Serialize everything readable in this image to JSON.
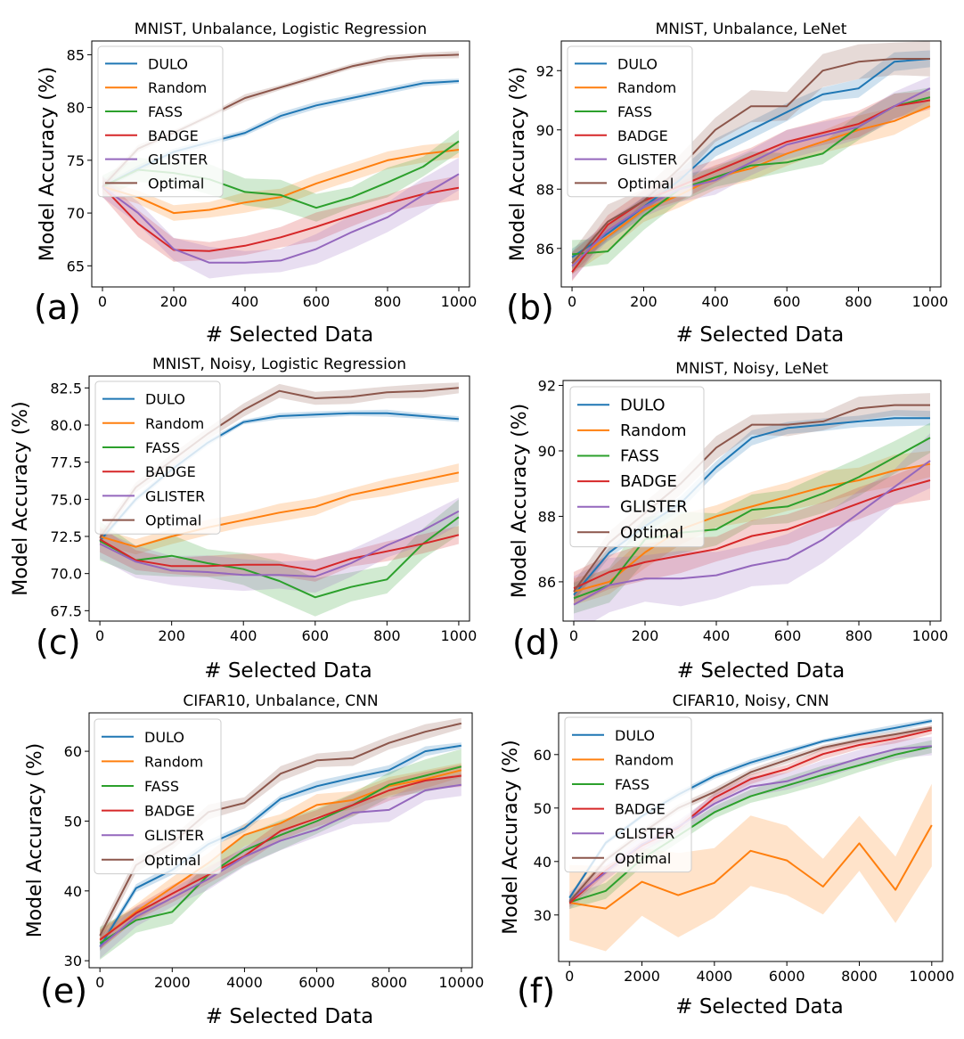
{
  "colors": {
    "DULO": "#1f77b4",
    "Random": "#ff7f0e",
    "FASS": "#2ca02c",
    "BADGE": "#d62728",
    "GLISTER": "#9467bd",
    "Optimal": "#8c564b"
  },
  "chart_data": [
    {
      "id": "a",
      "type": "line",
      "letter": "(a)",
      "title": "MNIST, Unbalance, Logistic Regression",
      "xlabel": "# Selected Data",
      "ylabel": "Model Accuracy (%)",
      "xlim": [
        -30,
        1030
      ],
      "ylim": [
        63,
        86.3
      ],
      "xticks": [
        0,
        200,
        400,
        600,
        800,
        1000
      ],
      "xtick_labels": [
        "0",
        "200",
        "400",
        "600",
        "800",
        "1000"
      ],
      "yticks": [
        65,
        70,
        75,
        80,
        85
      ],
      "ytick_labels": [
        "65",
        "70",
        "75",
        "80",
        "85"
      ],
      "legend": [
        "DULO",
        "Random",
        "FASS",
        "BADGE",
        "GLISTER",
        "Optimal"
      ],
      "x": [
        0,
        100,
        200,
        300,
        400,
        500,
        600,
        700,
        800,
        900,
        1000
      ],
      "series": [
        {
          "name": "DULO",
          "values": [
            72.5,
            74.2,
            75.8,
            76.7,
            77.6,
            79.2,
            80.2,
            80.9,
            81.6,
            82.3,
            82.5
          ],
          "band": 0.3
        },
        {
          "name": "Random",
          "values": [
            72.5,
            71.5,
            70.0,
            70.3,
            71.0,
            71.5,
            72.8,
            73.9,
            75.0,
            75.6,
            76.0
          ],
          "band": 0.8
        },
        {
          "name": "FASS",
          "values": [
            72.5,
            74.1,
            73.8,
            73.2,
            72.0,
            71.7,
            70.5,
            71.5,
            72.9,
            74.4,
            76.8
          ],
          "band": 1.2
        },
        {
          "name": "BADGE",
          "values": [
            72.5,
            69.0,
            66.5,
            66.4,
            66.9,
            67.7,
            68.7,
            69.8,
            70.9,
            71.8,
            72.4
          ],
          "band": 1.1
        },
        {
          "name": "GLISTER",
          "values": [
            72.5,
            70.0,
            66.6,
            65.3,
            65.3,
            65.5,
            66.6,
            68.2,
            69.6,
            71.7,
            73.7
          ],
          "band": 1.3
        },
        {
          "name": "Optimal",
          "values": [
            72.5,
            76.1,
            77.6,
            79.2,
            80.9,
            81.9,
            82.9,
            83.9,
            84.6,
            84.9,
            85.0
          ],
          "band": 0.3
        }
      ]
    },
    {
      "id": "b",
      "type": "line",
      "letter": "(b)",
      "title": "MNIST, Unbalance, LeNet",
      "xlabel": "# Selected Data",
      "ylabel": "Model Accuracy (%)",
      "xlim": [
        -30,
        1030
      ],
      "ylim": [
        84.7,
        93.0
      ],
      "xticks": [
        0,
        200,
        400,
        600,
        800,
        1000
      ],
      "xtick_labels": [
        "0",
        "200",
        "400",
        "600",
        "800",
        "1000"
      ],
      "yticks": [
        86,
        88,
        90,
        92
      ],
      "ytick_labels": [
        "86",
        "88",
        "90",
        "92"
      ],
      "legend": [
        "DULO",
        "Random",
        "FASS",
        "BADGE",
        "GLISTER",
        "Optimal"
      ],
      "x": [
        0,
        100,
        200,
        300,
        400,
        500,
        600,
        700,
        800,
        900,
        1000
      ],
      "series": [
        {
          "name": "DULO",
          "values": [
            85.7,
            86.5,
            87.4,
            88.3,
            89.4,
            90.0,
            90.6,
            91.2,
            91.4,
            92.3,
            92.4
          ],
          "band": 0.3
        },
        {
          "name": "Random",
          "values": [
            85.5,
            86.4,
            87.3,
            87.8,
            88.4,
            88.7,
            89.2,
            89.6,
            90.0,
            90.3,
            90.8
          ],
          "band": 0.4
        },
        {
          "name": "FASS",
          "values": [
            85.8,
            85.9,
            87.1,
            88.0,
            88.4,
            88.8,
            88.9,
            89.2,
            90.1,
            90.8,
            91.1
          ],
          "band": 0.4
        },
        {
          "name": "BADGE",
          "values": [
            85.2,
            86.8,
            87.6,
            88.1,
            88.6,
            89.1,
            89.6,
            89.9,
            90.2,
            90.8,
            91.0
          ],
          "band": 0.4
        },
        {
          "name": "GLISTER",
          "values": [
            85.4,
            86.6,
            87.4,
            88.0,
            88.3,
            88.9,
            89.5,
            89.8,
            90.1,
            90.8,
            91.4
          ],
          "band": 0.4
        },
        {
          "name": "Optimal",
          "values": [
            85.5,
            86.9,
            87.6,
            88.7,
            90.0,
            90.8,
            90.8,
            92.0,
            92.3,
            92.4,
            92.4
          ],
          "band": 0.5
        }
      ]
    },
    {
      "id": "c",
      "type": "line",
      "letter": "(c)",
      "title": "MNIST, Noisy, Logistic Regression",
      "xlabel": "# Selected Data",
      "ylabel": "Model Accuracy (%)",
      "xlim": [
        -30,
        1030
      ],
      "ylim": [
        66.8,
        83.3
      ],
      "xticks": [
        0,
        200,
        400,
        600,
        800,
        1000
      ],
      "xtick_labels": [
        "0",
        "200",
        "400",
        "600",
        "800",
        "1000"
      ],
      "yticks": [
        67.5,
        70.0,
        72.5,
        75.0,
        77.5,
        80.0,
        82.5
      ],
      "ytick_labels": [
        "67.5",
        "70.0",
        "72.5",
        "75.0",
        "77.5",
        "80.0",
        "82.5"
      ],
      "legend": [
        "DULO",
        "Random",
        "FASS",
        "BADGE",
        "GLISTER",
        "Optimal"
      ],
      "x": [
        0,
        100,
        200,
        300,
        400,
        500,
        600,
        700,
        800,
        900,
        1000
      ],
      "series": [
        {
          "name": "DULO",
          "values": [
            72.2,
            75.0,
            77.0,
            78.8,
            80.2,
            80.6,
            80.7,
            80.8,
            80.8,
            80.6,
            80.4
          ],
          "band": 0.2
        },
        {
          "name": "Random",
          "values": [
            72.5,
            71.8,
            72.5,
            73.1,
            73.6,
            74.1,
            74.5,
            75.3,
            75.8,
            76.3,
            76.8
          ],
          "band": 0.5
        },
        {
          "name": "FASS",
          "values": [
            72.2,
            70.9,
            71.2,
            70.7,
            70.3,
            69.5,
            68.4,
            69.1,
            69.6,
            72.0,
            73.8
          ],
          "band": 1.2
        },
        {
          "name": "BADGE",
          "values": [
            72.3,
            70.9,
            70.5,
            70.5,
            70.6,
            70.6,
            70.2,
            71.0,
            71.5,
            72.0,
            72.6
          ],
          "band": 0.7
        },
        {
          "name": "GLISTER",
          "values": [
            72.0,
            70.8,
            70.2,
            70.1,
            69.9,
            69.9,
            69.8,
            70.7,
            71.9,
            72.9,
            74.2
          ],
          "band": 0.9
        },
        {
          "name": "Optimal",
          "values": [
            72.4,
            75.8,
            77.6,
            79.4,
            81.0,
            82.3,
            81.8,
            81.9,
            82.2,
            82.3,
            82.5
          ],
          "band": 0.4
        }
      ]
    },
    {
      "id": "d",
      "type": "line",
      "letter": "(d)",
      "title": "MNIST, Noisy, LeNet",
      "xlabel": "# Selected Data",
      "ylabel": "Model Accuracy (%)",
      "xlim": [
        -30,
        1030
      ],
      "ylim": [
        84.8,
        92.15
      ],
      "xticks": [
        0,
        200,
        400,
        600,
        800,
        1000
      ],
      "xtick_labels": [
        "0",
        "200",
        "400",
        "600",
        "800",
        "1000"
      ],
      "yticks": [
        86,
        88,
        90,
        92
      ],
      "ytick_labels": [
        "86",
        "88",
        "90",
        "92"
      ],
      "legend": [
        "DULO",
        "Random",
        "FASS",
        "BADGE",
        "GLISTER",
        "Optimal"
      ],
      "x": [
        0,
        100,
        200,
        300,
        400,
        500,
        600,
        700,
        800,
        900,
        1000
      ],
      "series": [
        {
          "name": "DULO",
          "values": [
            85.6,
            86.9,
            87.7,
            88.4,
            89.5,
            90.4,
            90.7,
            90.8,
            90.9,
            91.0,
            91.0
          ],
          "band": 0.2
        },
        {
          "name": "Random",
          "values": [
            85.7,
            86.0,
            86.9,
            87.6,
            88.0,
            88.3,
            88.6,
            88.9,
            89.1,
            89.4,
            89.6
          ],
          "band": 0.4
        },
        {
          "name": "FASS",
          "values": [
            85.5,
            85.9,
            87.3,
            87.5,
            87.6,
            88.2,
            88.3,
            88.7,
            89.2,
            89.8,
            90.4
          ],
          "band": 0.6
        },
        {
          "name": "BADGE",
          "values": [
            85.8,
            86.3,
            86.6,
            86.8,
            87.0,
            87.4,
            87.6,
            88.0,
            88.4,
            88.8,
            89.1
          ],
          "band": 0.5
        },
        {
          "name": "GLISTER",
          "values": [
            85.3,
            85.9,
            86.1,
            86.1,
            86.2,
            86.5,
            86.7,
            87.3,
            88.1,
            88.9,
            89.7
          ],
          "band": 0.7
        },
        {
          "name": "Optimal",
          "values": [
            85.7,
            87.2,
            88.1,
            89.0,
            90.1,
            90.8,
            90.8,
            90.9,
            91.3,
            91.4,
            91.4
          ],
          "band": 0.3
        }
      ]
    },
    {
      "id": "e",
      "type": "line",
      "letter": "(e)",
      "title": "CIFAR10, Unbalance, CNN",
      "xlabel": "# Selected Data",
      "ylabel": "Model Accuracy (%)",
      "xlim": [
        -300,
        10300
      ],
      "ylim": [
        29,
        65.5
      ],
      "xticks": [
        0,
        2000,
        4000,
        6000,
        8000,
        10000
      ],
      "xtick_labels": [
        "0",
        "2000",
        "4000",
        "6000",
        "8000",
        "10000"
      ],
      "yticks": [
        30,
        40,
        50,
        60
      ],
      "ytick_labels": [
        "30",
        "40",
        "50",
        "60"
      ],
      "legend": [
        "DULO",
        "Random",
        "FASS",
        "BADGE",
        "GLISTER",
        "Optimal"
      ],
      "x": [
        0,
        1000,
        2000,
        3000,
        4000,
        5000,
        6000,
        7000,
        8000,
        9000,
        10000
      ],
      "series": [
        {
          "name": "DULO",
          "values": [
            32.0,
            40.4,
            43.0,
            46.7,
            49.0,
            53.2,
            55.0,
            56.2,
            57.3,
            60.0,
            60.8
          ],
          "band": 0.6
        },
        {
          "name": "Random",
          "values": [
            33.0,
            37.0,
            40.5,
            44.0,
            48.0,
            49.7,
            52.3,
            53.0,
            55.0,
            56.0,
            57.3
          ],
          "band": 1.3
        },
        {
          "name": "FASS",
          "values": [
            32.5,
            35.8,
            37.0,
            42.3,
            45.8,
            48.0,
            50.0,
            52.3,
            55.2,
            56.5,
            57.8
          ],
          "band": 2.2
        },
        {
          "name": "BADGE",
          "values": [
            33.0,
            36.8,
            39.6,
            42.3,
            45.0,
            48.6,
            50.4,
            52.3,
            54.4,
            55.8,
            56.5
          ],
          "band": 1.3
        },
        {
          "name": "GLISTER",
          "values": [
            32.0,
            36.3,
            39.0,
            41.7,
            44.9,
            47.2,
            48.8,
            51.2,
            51.6,
            54.4,
            55.2
          ],
          "band": 1.4
        },
        {
          "name": "Optimal",
          "values": [
            33.6,
            43.7,
            46.8,
            51.3,
            52.6,
            56.8,
            58.7,
            59.0,
            61.2,
            62.8,
            64.0
          ],
          "band": 0.9
        }
      ]
    },
    {
      "id": "f",
      "type": "line",
      "letter": "(f)",
      "title": "CIFAR10, Noisy, CNN",
      "xlabel": "# Selected Data",
      "ylabel": "Model Accuracy (%)",
      "xlim": [
        -300,
        10300
      ],
      "ylim": [
        21.3,
        67.8
      ],
      "xticks": [
        0,
        2000,
        4000,
        6000,
        8000,
        10000
      ],
      "xtick_labels": [
        "0",
        "2000",
        "4000",
        "6000",
        "8000",
        "10000"
      ],
      "yticks": [
        30,
        40,
        50,
        60
      ],
      "ytick_labels": [
        "30",
        "40",
        "50",
        "60"
      ],
      "legend": [
        "DULO",
        "Random",
        "FASS",
        "BADGE",
        "GLISTER",
        "Optimal"
      ],
      "x": [
        0,
        1000,
        2000,
        3000,
        4000,
        5000,
        6000,
        7000,
        8000,
        9000,
        10000
      ],
      "series": [
        {
          "name": "DULO",
          "values": [
            33.2,
            43.5,
            48.5,
            52.5,
            56.0,
            58.5,
            60.5,
            62.5,
            63.8,
            65.0,
            66.3
          ],
          "band": 0.5
        },
        {
          "name": "Random",
          "values": [
            32.3,
            31.2,
            36.2,
            33.7,
            36.0,
            42.0,
            40.2,
            35.3,
            43.4,
            34.7,
            46.8
          ],
          "band": 6.5
        },
        {
          "name": "FASS",
          "values": [
            32.4,
            34.5,
            40.5,
            44.8,
            49.2,
            52.2,
            54.2,
            56.2,
            58.0,
            60.0,
            61.5
          ],
          "band": 1.5
        },
        {
          "name": "BADGE",
          "values": [
            32.2,
            38.3,
            43.0,
            46.3,
            51.9,
            55.4,
            57.3,
            60.1,
            61.8,
            63.0,
            64.6
          ],
          "band": 0.8
        },
        {
          "name": "GLISTER",
          "values": [
            32.7,
            38.0,
            43.2,
            46.5,
            50.8,
            54.0,
            55.0,
            57.2,
            59.3,
            61.0,
            61.6
          ],
          "band": 1.5
        },
        {
          "name": "Optimal",
          "values": [
            32.5,
            40.3,
            45.3,
            50.0,
            53.0,
            56.7,
            59.0,
            61.3,
            62.7,
            63.8,
            65.0
          ],
          "band": 0.6
        }
      ]
    }
  ]
}
